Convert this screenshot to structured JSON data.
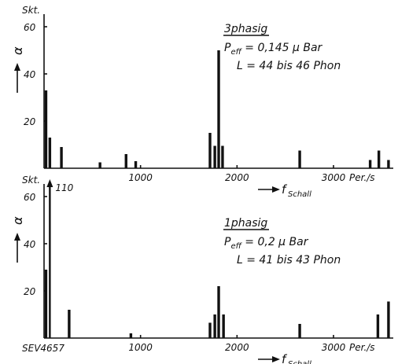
{
  "chart_data": [
    {
      "type": "bar",
      "y_unit_label": "Skt.",
      "y_symbol": "α",
      "yticks": [
        "60",
        "40",
        "20"
      ],
      "ylim": [
        0,
        62
      ],
      "xlim": [
        0,
        3600
      ],
      "xticks": [
        {
          "value": 1000,
          "label": "1000"
        },
        {
          "value": 2000,
          "label": "2000"
        },
        {
          "value": 3000,
          "label": "3000"
        }
      ],
      "x_unit": "Per./s",
      "xlabel": "f",
      "xlabel_sub": "Schall",
      "annotation": {
        "title": "3phasig",
        "line1_main": "P",
        "line1_sub": "eff",
        "line1_rest": " = 0,145 µ Bar",
        "line2": "L = 44 bis 46 Phon"
      },
      "bars": [
        {
          "x": 20,
          "y": 33
        },
        {
          "x": 60,
          "y": 13
        },
        {
          "x": 180,
          "y": 9
        },
        {
          "x": 580,
          "y": 2.5
        },
        {
          "x": 850,
          "y": 6
        },
        {
          "x": 950,
          "y": 3
        },
        {
          "x": 1720,
          "y": 15
        },
        {
          "x": 1770,
          "y": 9.5
        },
        {
          "x": 1810,
          "y": 50
        },
        {
          "x": 1850,
          "y": 9.5
        },
        {
          "x": 2650,
          "y": 7.5
        },
        {
          "x": 3380,
          "y": 3.5
        },
        {
          "x": 3470,
          "y": 7.5
        },
        {
          "x": 3570,
          "y": 3.5
        }
      ]
    },
    {
      "type": "bar",
      "y_unit_label": "Skt.",
      "y_symbol": "α",
      "yticks": [
        "60",
        "40",
        "20"
      ],
      "ylim": [
        0,
        62
      ],
      "xlim": [
        0,
        3600
      ],
      "xticks": [
        {
          "value": 1000,
          "label": "1000"
        },
        {
          "value": 2000,
          "label": "2000"
        },
        {
          "value": 3000,
          "label": "3000"
        }
      ],
      "x_unit": "Per./s",
      "xlabel": "f",
      "xlabel_sub": "Schall",
      "annotation": {
        "title": "1phasig",
        "line1_main": "P",
        "line1_sub": "eff",
        "line1_rest": " = 0,2 µ Bar",
        "line2": "L = 41 bis 43 Phon"
      },
      "off_scale_bar": {
        "x": 60,
        "y": 110,
        "label": "110"
      },
      "bars": [
        {
          "x": 20,
          "y": 29
        },
        {
          "x": 260,
          "y": 12
        },
        {
          "x": 900,
          "y": 2
        },
        {
          "x": 1720,
          "y": 6.5
        },
        {
          "x": 1770,
          "y": 10
        },
        {
          "x": 1810,
          "y": 22
        },
        {
          "x": 1860,
          "y": 10
        },
        {
          "x": 2650,
          "y": 6
        },
        {
          "x": 3460,
          "y": 10
        },
        {
          "x": 3570,
          "y": 15.5
        }
      ]
    }
  ],
  "footer_code": "SEV4657"
}
